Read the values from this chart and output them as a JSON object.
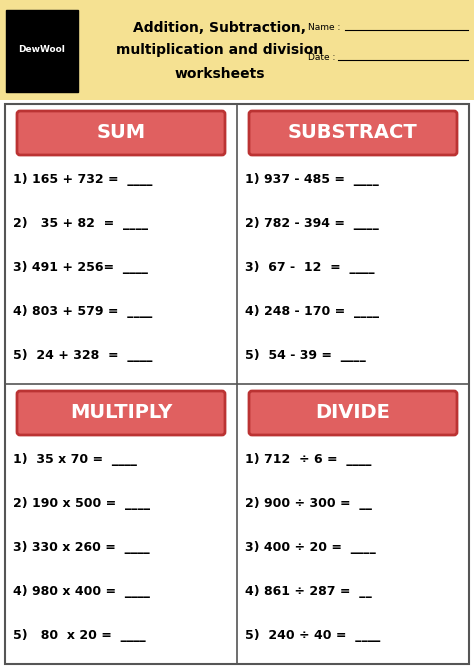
{
  "bg_header_color": "#F5E192",
  "bg_white": "#FFFFFF",
  "red_box_color": "#E06060",
  "border_color": "#555555",
  "sections": [
    {
      "title": "SUM",
      "problems": [
        "1) 165 + 732 =  ____",
        "2)   35 + 82  =  ____",
        "3) 491 + 256=  ____",
        "4) 803 + 579 =  ____",
        "5)  24 + 328  =  ____"
      ]
    },
    {
      "title": "SUBSTRACT",
      "problems": [
        "1) 937 - 485 =  ____",
        "2) 782 - 394 =  ____",
        "3)  67 -  12  =  ____",
        "4) 248 - 170 =  ____",
        "5)  54 - 39 =  ____"
      ]
    },
    {
      "title": "MULTIPLY",
      "problems": [
        "1)  35 x 70 =  ____",
        "2) 190 x 500 =  ____",
        "3) 330 x 260 =  ____",
        "4) 980 x 400 =  ____",
        "5)   80  x 20 =  ____"
      ]
    },
    {
      "title": "DIVIDE",
      "problems": [
        "1) 712  ÷ 6 =  ____",
        "2) 900 ÷ 300 =  __",
        "3) 400 ÷ 20 =  ____",
        "4) 861 ÷ 287 =  __",
        "5)  240 ÷ 40 =  ____"
      ]
    }
  ]
}
